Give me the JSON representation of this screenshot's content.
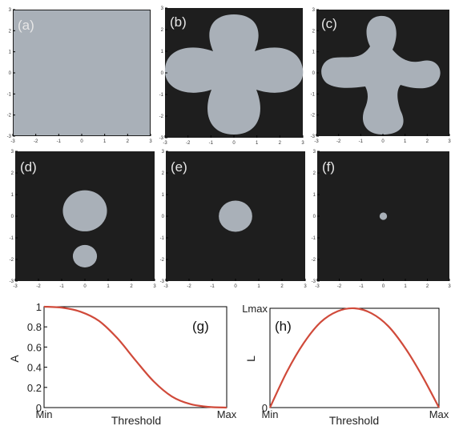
{
  "panels": [
    {
      "label": "(a)",
      "ticks": [
        "-3",
        "-2",
        "-1",
        "0",
        "1",
        "2",
        "3"
      ],
      "blobs": []
    },
    {
      "label": "(b)",
      "ticks": [
        "-3",
        "-2",
        "-1",
        "0",
        "1",
        "2",
        "3"
      ],
      "blobs": []
    },
    {
      "label": "(c)",
      "ticks": [
        "-3",
        "-2",
        "-1",
        "0",
        "1",
        "2",
        "3"
      ],
      "blobs": []
    },
    {
      "label": "(d)",
      "ticks": [
        "-3",
        "-2",
        "-1",
        "0",
        "1",
        "2",
        "3"
      ],
      "blobs": [
        {
          "x": 0,
          "y": 0.25,
          "r": 0.95
        },
        {
          "x": 0,
          "y": -1.85,
          "r": 0.52
        }
      ]
    },
    {
      "label": "(e)",
      "ticks": [
        "-3",
        "-2",
        "-1",
        "0",
        "1",
        "2",
        "3"
      ],
      "blobs": [
        {
          "x": 0,
          "y": 0,
          "r": 0.72
        }
      ]
    },
    {
      "label": "(f)",
      "ticks": [
        "-3",
        "-2",
        "-1",
        "0",
        "1",
        "2",
        "3"
      ],
      "blobs": [
        {
          "x": 0,
          "y": 0,
          "r": 0.17
        }
      ]
    }
  ],
  "chart_data": [
    {
      "type": "line",
      "panel_label": "(g)",
      "xlabel": "Threshold",
      "ylabel": "A",
      "x_tick_labels": [
        "Min",
        "Max"
      ],
      "y_tick_labels": [
        "0",
        "0.2",
        "0.4",
        "0.6",
        "0.8",
        "1"
      ],
      "ylim": [
        0,
        1
      ],
      "x": [
        0,
        0.1,
        0.2,
        0.3,
        0.4,
        0.5,
        0.6,
        0.7,
        0.8,
        0.9,
        1.0
      ],
      "y": [
        1.0,
        0.99,
        0.95,
        0.86,
        0.69,
        0.47,
        0.26,
        0.11,
        0.035,
        0.007,
        0.0
      ],
      "color": "#d04a3a"
    },
    {
      "type": "line",
      "panel_label": "(h)",
      "xlabel": "Threshold",
      "ylabel": "L",
      "x_tick_labels": [
        "Min",
        "Max"
      ],
      "y_tick_labels": [
        "0",
        "Lmax"
      ],
      "ylim": [
        0,
        1
      ],
      "x": [
        0,
        0.1,
        0.2,
        0.3,
        0.4,
        0.5,
        0.6,
        0.7,
        0.8,
        0.9,
        1.0
      ],
      "y": [
        0.0,
        0.36,
        0.65,
        0.86,
        0.97,
        1.0,
        0.95,
        0.82,
        0.6,
        0.32,
        0.0
      ],
      "color": "#d04a3a"
    }
  ]
}
